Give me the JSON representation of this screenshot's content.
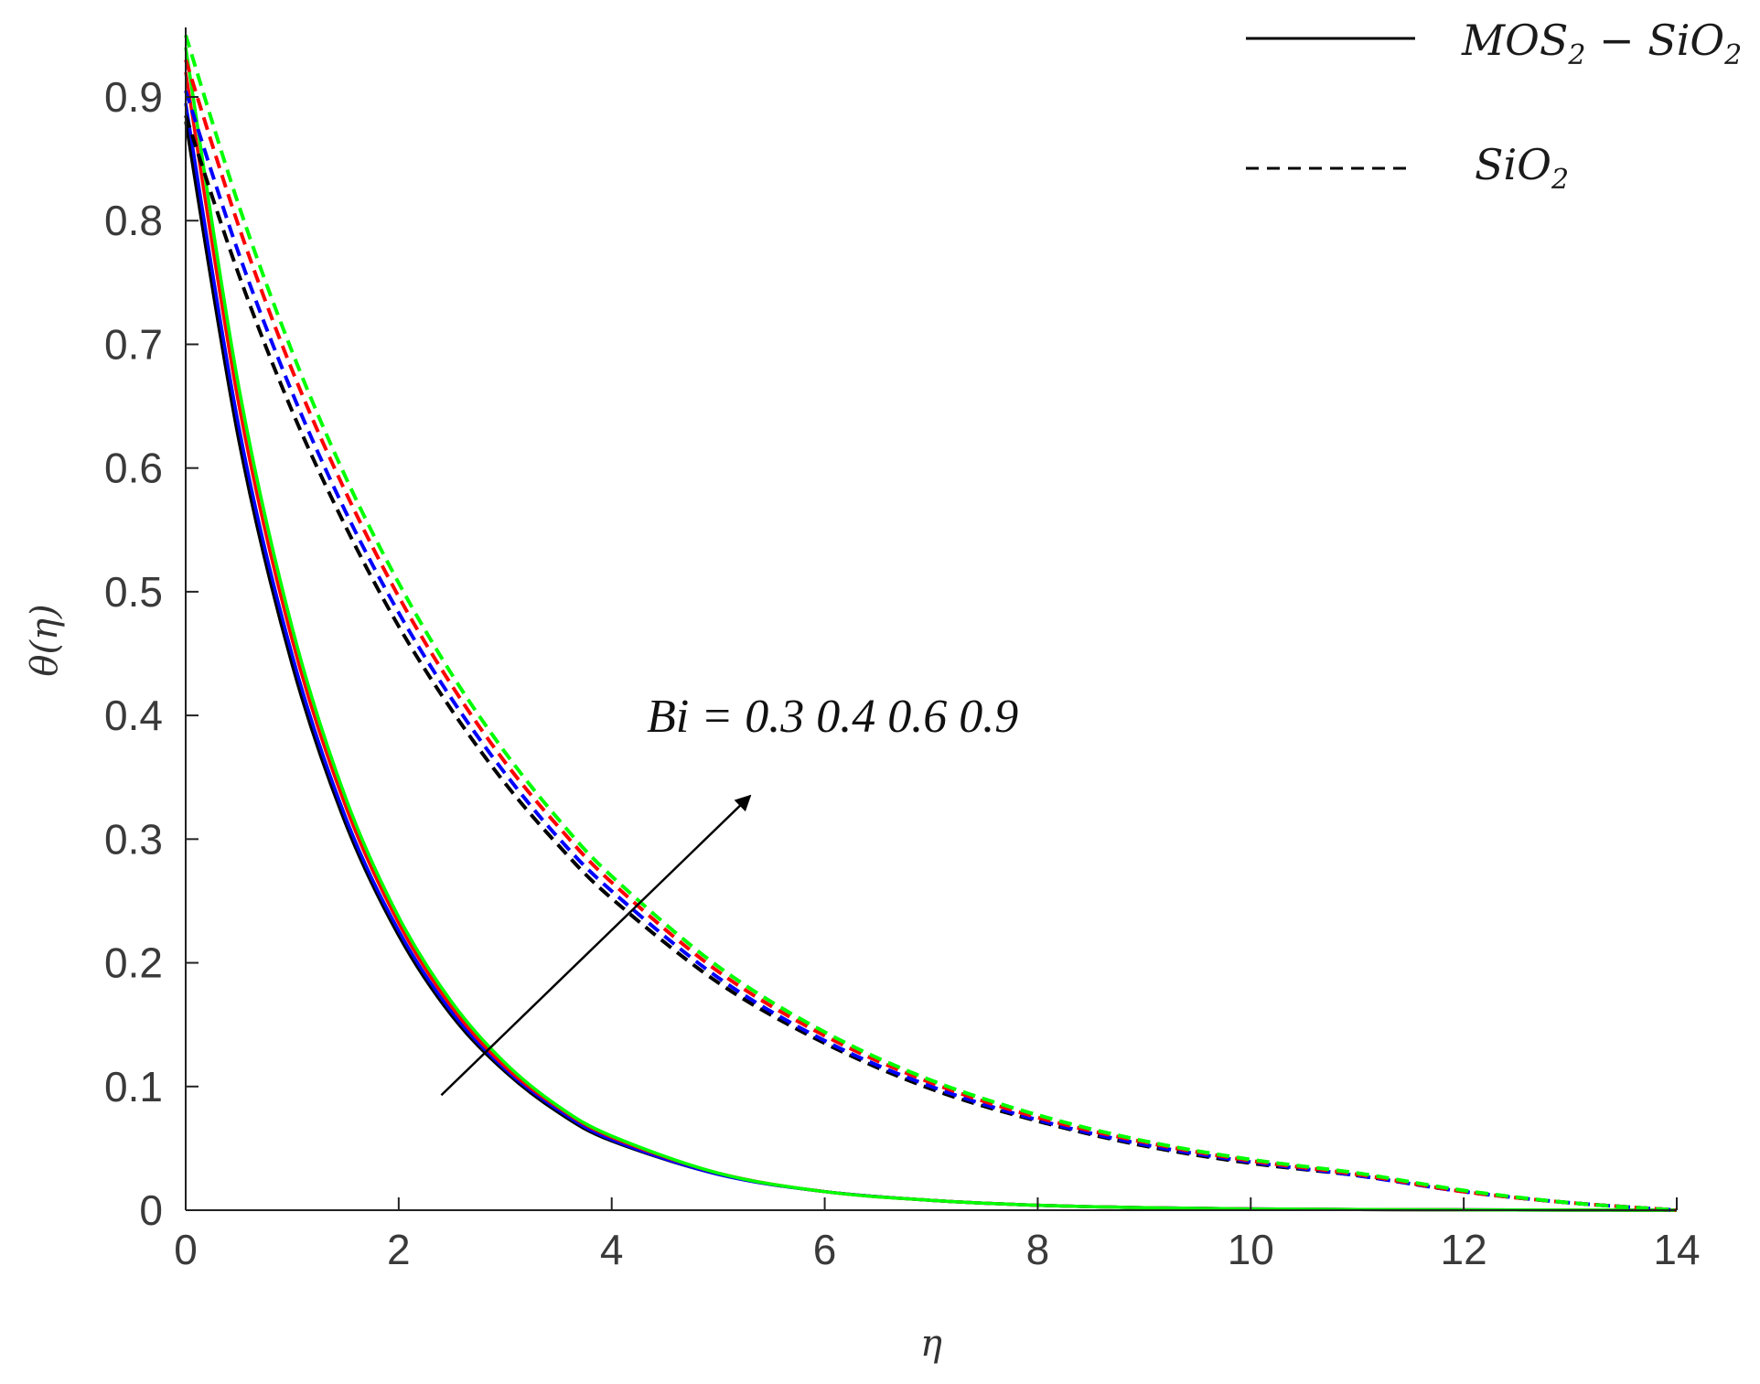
{
  "chart_data": {
    "type": "line",
    "xlabel": "η",
    "ylabel": "θ(η)",
    "xlim": [
      0,
      14
    ],
    "ylim": [
      0,
      0.95
    ],
    "x_ticks": [
      "0",
      "2",
      "4",
      "6",
      "8",
      "10",
      "12",
      "14"
    ],
    "y_ticks": [
      "0",
      "0.1",
      "0.2",
      "0.3",
      "0.4",
      "0.5",
      "0.6",
      "0.7",
      "0.8",
      "0.9"
    ],
    "legend": {
      "position": "top-right",
      "entries": [
        {
          "base": "MOS",
          "sub": "2",
          "mid": " − SiO",
          "sub2": "2",
          "style": "solid"
        },
        {
          "base": "SiO",
          "sub": "2",
          "mid": "",
          "sub2": "",
          "style": "dashed"
        }
      ]
    },
    "annotation": {
      "text": "Bi = 0.3 0.4 0.6 0.9",
      "arrow_from": [
        2.4,
        0.093
      ],
      "arrow_to": [
        5.3,
        0.335
      ]
    },
    "x": [
      0,
      0.5,
      1,
      1.5,
      2,
      2.5,
      3,
      3.5,
      4,
      5,
      6,
      7,
      8,
      9,
      10,
      11,
      12,
      13,
      14
    ],
    "series": [
      {
        "group": "MOS2-SiO2",
        "bi": "0.3",
        "color": "#000000",
        "style": "solid",
        "values": [
          0.88,
          0.622,
          0.441,
          0.313,
          0.222,
          0.157,
          0.112,
          0.079,
          0.056,
          0.029,
          0.015,
          0.008,
          0.004,
          0.002,
          0.001,
          0.0005,
          0.0003,
          0.0001,
          0
        ]
      },
      {
        "group": "MOS2-SiO2",
        "bi": "0.4",
        "color": "#0000ff",
        "style": "solid",
        "values": [
          0.895,
          0.633,
          0.449,
          0.318,
          0.226,
          0.16,
          0.114,
          0.081,
          0.057,
          0.029,
          0.015,
          0.008,
          0.004,
          0.002,
          0.001,
          0.0005,
          0.0003,
          0.0001,
          0
        ]
      },
      {
        "group": "MOS2-SiO2",
        "bi": "0.6",
        "color": "#ff0000",
        "style": "solid",
        "values": [
          0.92,
          0.651,
          0.461,
          0.327,
          0.232,
          0.164,
          0.116,
          0.083,
          0.059,
          0.03,
          0.015,
          0.008,
          0.004,
          0.002,
          0.001,
          0.0005,
          0.0003,
          0.0001,
          0
        ]
      },
      {
        "group": "MOS2-SiO2",
        "bi": "0.9",
        "color": "#00ff00",
        "style": "solid",
        "values": [
          0.94,
          0.665,
          0.471,
          0.334,
          0.237,
          0.168,
          0.119,
          0.084,
          0.06,
          0.03,
          0.015,
          0.008,
          0.004,
          0.002,
          0.001,
          0.0005,
          0.0003,
          0.0001,
          0
        ]
      },
      {
        "group": "SiO2",
        "bi": "0.3",
        "color": "#000000",
        "style": "dashed",
        "values": [
          0.885,
          0.756,
          0.646,
          0.553,
          0.472,
          0.404,
          0.345,
          0.295,
          0.252,
          0.184,
          0.135,
          0.098,
          0.072,
          0.052,
          0.038,
          0.028,
          0.015,
          0.006,
          0
        ]
      },
      {
        "group": "SiO2",
        "bi": "0.4",
        "color": "#0000ff",
        "style": "dashed",
        "values": [
          0.905,
          0.773,
          0.661,
          0.565,
          0.483,
          0.413,
          0.353,
          0.301,
          0.258,
          0.188,
          0.137,
          0.1,
          0.073,
          0.053,
          0.039,
          0.028,
          0.015,
          0.006,
          0
        ]
      },
      {
        "group": "SiO2",
        "bi": "0.6",
        "color": "#ff0000",
        "style": "dashed",
        "values": [
          0.93,
          0.795,
          0.679,
          0.581,
          0.496,
          0.424,
          0.362,
          0.31,
          0.265,
          0.193,
          0.141,
          0.103,
          0.075,
          0.055,
          0.04,
          0.029,
          0.015,
          0.006,
          0
        ]
      },
      {
        "group": "SiO2",
        "bi": "0.9",
        "color": "#00ff00",
        "style": "dashed",
        "values": [
          0.95,
          0.812,
          0.694,
          0.593,
          0.507,
          0.433,
          0.37,
          0.316,
          0.27,
          0.197,
          0.144,
          0.105,
          0.077,
          0.056,
          0.041,
          0.03,
          0.016,
          0.006,
          0
        ]
      }
    ]
  }
}
